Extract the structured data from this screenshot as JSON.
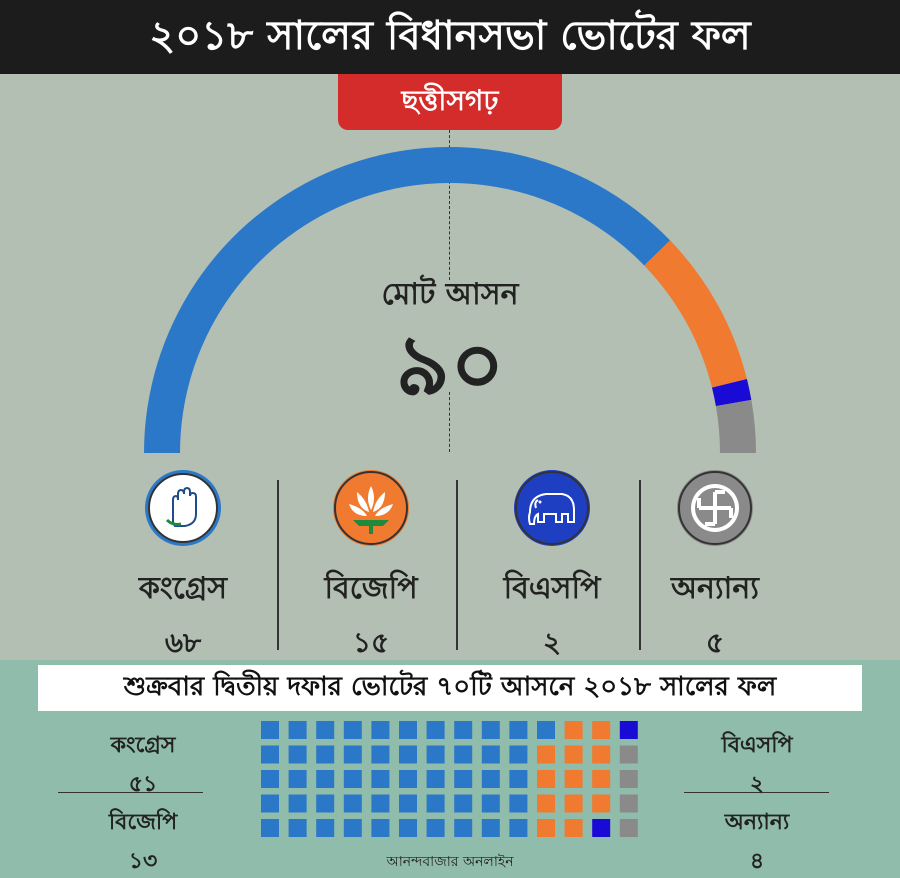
{
  "header": {
    "title": "২০১৮ সালের বিধানসভা ভোটের ফল"
  },
  "state": {
    "name": "ছত্তীসগঢ়"
  },
  "total": {
    "label": "মোট আসন",
    "value": "৯০"
  },
  "parties": [
    {
      "name": "কংগ্রেস",
      "seats": "৬৮",
      "icon": "hand-icon",
      "color": "#2b78c8"
    },
    {
      "name": "বিজেপি",
      "seats": "১৫",
      "icon": "lotus-icon",
      "color": "#f07a2f"
    },
    {
      "name": "বিএসপি",
      "seats": "২",
      "icon": "elephant-icon",
      "color": "#1a0ad6"
    },
    {
      "name": "অন্যান্য",
      "seats": "৫",
      "icon": "swastik-icon",
      "color": "#8a8a8a"
    }
  ],
  "subtitle": "শুক্রবার দ্বিতীয় দফার ভোটের ৭০টি আসনে ২০১৮ সালের ফল",
  "phase2": {
    "left": [
      {
        "name": "কংগ্রেস",
        "seats": "৫১"
      },
      {
        "name": "বিজেপি",
        "seats": "১৩"
      }
    ],
    "right": [
      {
        "name": "বিএসপি",
        "seats": "২"
      },
      {
        "name": "অন্যান্য",
        "seats": "৪"
      }
    ]
  },
  "credit": "আনন্দবাজার অনলাইন",
  "chart_data": [
    {
      "type": "pie",
      "variant": "half-donut",
      "categories": [
        "কংগ্রেস",
        "বিজেপি",
        "বিএসপি",
        "অন্যান্য"
      ],
      "values": [
        68,
        15,
        2,
        5
      ],
      "colors": [
        "#2b78c8",
        "#f07a2f",
        "#1a0ad6",
        "#8a8a8a"
      ]
    },
    {
      "type": "waffle",
      "categories": [
        "কংগ্রেস",
        "বিজেপি",
        "বিএসপি",
        "অন্যান্য"
      ],
      "values": [
        51,
        13,
        2,
        4
      ],
      "colors": [
        "#2b78c8",
        "#f07a2f",
        "#1a0ad6",
        "#8a8a8a"
      ],
      "rows": 5,
      "cols": 14,
      "cell_colors": [
        [
          "c",
          "c",
          "c",
          "c",
          "c",
          "c",
          "c",
          "c",
          "c",
          "c",
          "c",
          "b",
          "b",
          "s"
        ],
        [
          "c",
          "c",
          "c",
          "c",
          "c",
          "c",
          "c",
          "c",
          "c",
          "c",
          "b",
          "b",
          "b",
          "o"
        ],
        [
          "c",
          "c",
          "c",
          "c",
          "c",
          "c",
          "c",
          "c",
          "c",
          "c",
          "b",
          "b",
          "b",
          "o"
        ],
        [
          "c",
          "c",
          "c",
          "c",
          "c",
          "c",
          "c",
          "c",
          "c",
          "c",
          "b",
          "b",
          "b",
          "o"
        ],
        [
          "c",
          "c",
          "c",
          "c",
          "c",
          "c",
          "c",
          "c",
          "c",
          "c",
          "b",
          "b",
          "s",
          "o"
        ]
      ],
      "cell_key": {
        "c": "কংগ্রেস",
        "b": "বিজেপি",
        "s": "বিএসপি",
        "o": "অন্যান্য"
      }
    }
  ]
}
